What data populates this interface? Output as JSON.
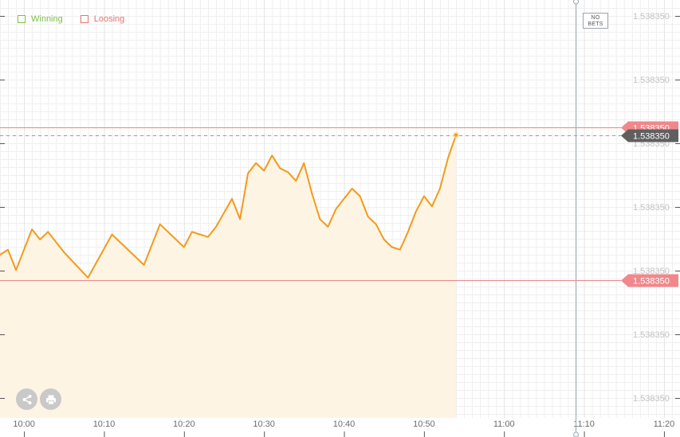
{
  "legend": {
    "winning": {
      "label": "Winning",
      "color": "#7cc142"
    },
    "losing": {
      "label": "Loosing",
      "color": "#e57373"
    }
  },
  "marker": {
    "line1": "NO",
    "line2": "BETS",
    "time": "11:09"
  },
  "buttons": {
    "share": "share-icon",
    "print": "print-icon"
  },
  "colors": {
    "line": "#f39a1b",
    "fill": "#fdf4e3",
    "grid": "#efefef",
    "tag_red": "#f0888b",
    "tag_dark": "#5f5f5f",
    "red_line": "#e8868a",
    "tick_text": "#c2c2c2",
    "axis_text": "#6b6b6b"
  },
  "chart_data": {
    "type": "line",
    "x_ticks": [
      "10:00",
      "10:10",
      "10:20",
      "10:30",
      "10:40",
      "10:50",
      "11:00",
      "11:10",
      "11:20"
    ],
    "y_tick_labels": [
      "1.538350",
      "1.538350",
      "1.538350",
      "1.538350",
      "1.538350",
      "1.538350",
      "1.538350"
    ],
    "price_tags": [
      {
        "label": "1.538350",
        "style": "red",
        "y": 1.0
      },
      {
        "label": "1.538350",
        "style": "dark",
        "y": 0.85
      },
      {
        "label": "1.538350",
        "style": "red",
        "y": -2.0
      }
    ],
    "ylim": [
      -4.7,
      3.5
    ],
    "xlim": [
      "09:57",
      "11:22"
    ],
    "series": [
      {
        "x": [
          "09:57",
          "09:58",
          "09:59",
          "10:01",
          "10:02",
          "10:03",
          "10:05",
          "10:08",
          "10:11",
          "10:12",
          "10:15",
          "10:17",
          "10:20",
          "10:21",
          "10:22",
          "10:23",
          "10:24",
          "10:26",
          "10:27",
          "10:28",
          "10:29",
          "10:30",
          "10:31",
          "10:32",
          "10:33",
          "10:34",
          "10:35",
          "10:36",
          "10:37",
          "10:38",
          "10:39",
          "10:40",
          "10:41",
          "10:42",
          "10:43",
          "10:44",
          "10:45",
          "10:46",
          "10:47",
          "10:48",
          "10:49",
          "10:50",
          "10:51",
          "10:52",
          "10:53",
          "10:54"
        ],
        "y": [
          -1.5,
          -1.4,
          -1.8,
          -1.0,
          -1.2,
          -1.05,
          -1.45,
          -1.95,
          -1.1,
          -1.25,
          -1.7,
          -0.9,
          -1.35,
          -1.05,
          -1.1,
          -1.15,
          -0.95,
          -0.4,
          -0.8,
          0.1,
          0.3,
          0.15,
          0.45,
          0.2,
          0.12,
          -0.05,
          0.3,
          -0.3,
          -0.8,
          -0.95,
          -0.6,
          -0.4,
          -0.2,
          -0.35,
          -0.75,
          -0.9,
          -1.2,
          -1.35,
          -1.4,
          -1.05,
          -0.65,
          -0.35,
          -0.55,
          -0.2,
          0.4,
          0.85
        ]
      }
    ]
  }
}
